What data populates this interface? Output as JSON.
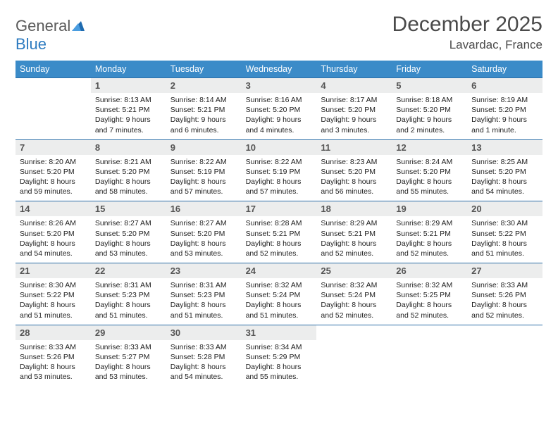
{
  "logo": {
    "part1": "General",
    "part2": "Blue"
  },
  "header": {
    "title": "December 2025",
    "location": "Lavardac, France"
  },
  "colors": {
    "header_bg": "#3b8bc8",
    "header_text": "#ffffff",
    "daynum_bg": "#eceded",
    "cell_border": "#2d6fa8",
    "logo_gray": "#5a5a5a",
    "logo_blue": "#2d7bc0"
  },
  "weekdays": [
    "Sunday",
    "Monday",
    "Tuesday",
    "Wednesday",
    "Thursday",
    "Friday",
    "Saturday"
  ],
  "firstDayIndex": 1,
  "days": [
    {
      "n": "1",
      "sunrise": "8:13 AM",
      "sunset": "5:21 PM",
      "daylight": "9 hours and 7 minutes."
    },
    {
      "n": "2",
      "sunrise": "8:14 AM",
      "sunset": "5:21 PM",
      "daylight": "9 hours and 6 minutes."
    },
    {
      "n": "3",
      "sunrise": "8:16 AM",
      "sunset": "5:20 PM",
      "daylight": "9 hours and 4 minutes."
    },
    {
      "n": "4",
      "sunrise": "8:17 AM",
      "sunset": "5:20 PM",
      "daylight": "9 hours and 3 minutes."
    },
    {
      "n": "5",
      "sunrise": "8:18 AM",
      "sunset": "5:20 PM",
      "daylight": "9 hours and 2 minutes."
    },
    {
      "n": "6",
      "sunrise": "8:19 AM",
      "sunset": "5:20 PM",
      "daylight": "9 hours and 1 minute."
    },
    {
      "n": "7",
      "sunrise": "8:20 AM",
      "sunset": "5:20 PM",
      "daylight": "8 hours and 59 minutes."
    },
    {
      "n": "8",
      "sunrise": "8:21 AM",
      "sunset": "5:20 PM",
      "daylight": "8 hours and 58 minutes."
    },
    {
      "n": "9",
      "sunrise": "8:22 AM",
      "sunset": "5:19 PM",
      "daylight": "8 hours and 57 minutes."
    },
    {
      "n": "10",
      "sunrise": "8:22 AM",
      "sunset": "5:19 PM",
      "daylight": "8 hours and 57 minutes."
    },
    {
      "n": "11",
      "sunrise": "8:23 AM",
      "sunset": "5:20 PM",
      "daylight": "8 hours and 56 minutes."
    },
    {
      "n": "12",
      "sunrise": "8:24 AM",
      "sunset": "5:20 PM",
      "daylight": "8 hours and 55 minutes."
    },
    {
      "n": "13",
      "sunrise": "8:25 AM",
      "sunset": "5:20 PM",
      "daylight": "8 hours and 54 minutes."
    },
    {
      "n": "14",
      "sunrise": "8:26 AM",
      "sunset": "5:20 PM",
      "daylight": "8 hours and 54 minutes."
    },
    {
      "n": "15",
      "sunrise": "8:27 AM",
      "sunset": "5:20 PM",
      "daylight": "8 hours and 53 minutes."
    },
    {
      "n": "16",
      "sunrise": "8:27 AM",
      "sunset": "5:20 PM",
      "daylight": "8 hours and 53 minutes."
    },
    {
      "n": "17",
      "sunrise": "8:28 AM",
      "sunset": "5:21 PM",
      "daylight": "8 hours and 52 minutes."
    },
    {
      "n": "18",
      "sunrise": "8:29 AM",
      "sunset": "5:21 PM",
      "daylight": "8 hours and 52 minutes."
    },
    {
      "n": "19",
      "sunrise": "8:29 AM",
      "sunset": "5:21 PM",
      "daylight": "8 hours and 52 minutes."
    },
    {
      "n": "20",
      "sunrise": "8:30 AM",
      "sunset": "5:22 PM",
      "daylight": "8 hours and 51 minutes."
    },
    {
      "n": "21",
      "sunrise": "8:30 AM",
      "sunset": "5:22 PM",
      "daylight": "8 hours and 51 minutes."
    },
    {
      "n": "22",
      "sunrise": "8:31 AM",
      "sunset": "5:23 PM",
      "daylight": "8 hours and 51 minutes."
    },
    {
      "n": "23",
      "sunrise": "8:31 AM",
      "sunset": "5:23 PM",
      "daylight": "8 hours and 51 minutes."
    },
    {
      "n": "24",
      "sunrise": "8:32 AM",
      "sunset": "5:24 PM",
      "daylight": "8 hours and 51 minutes."
    },
    {
      "n": "25",
      "sunrise": "8:32 AM",
      "sunset": "5:24 PM",
      "daylight": "8 hours and 52 minutes."
    },
    {
      "n": "26",
      "sunrise": "8:32 AM",
      "sunset": "5:25 PM",
      "daylight": "8 hours and 52 minutes."
    },
    {
      "n": "27",
      "sunrise": "8:33 AM",
      "sunset": "5:26 PM",
      "daylight": "8 hours and 52 minutes."
    },
    {
      "n": "28",
      "sunrise": "8:33 AM",
      "sunset": "5:26 PM",
      "daylight": "8 hours and 53 minutes."
    },
    {
      "n": "29",
      "sunrise": "8:33 AM",
      "sunset": "5:27 PM",
      "daylight": "8 hours and 53 minutes."
    },
    {
      "n": "30",
      "sunrise": "8:33 AM",
      "sunset": "5:28 PM",
      "daylight": "8 hours and 54 minutes."
    },
    {
      "n": "31",
      "sunrise": "8:34 AM",
      "sunset": "5:29 PM",
      "daylight": "8 hours and 55 minutes."
    }
  ],
  "labels": {
    "sunrise": "Sunrise:",
    "sunset": "Sunset:",
    "daylight": "Daylight:"
  }
}
